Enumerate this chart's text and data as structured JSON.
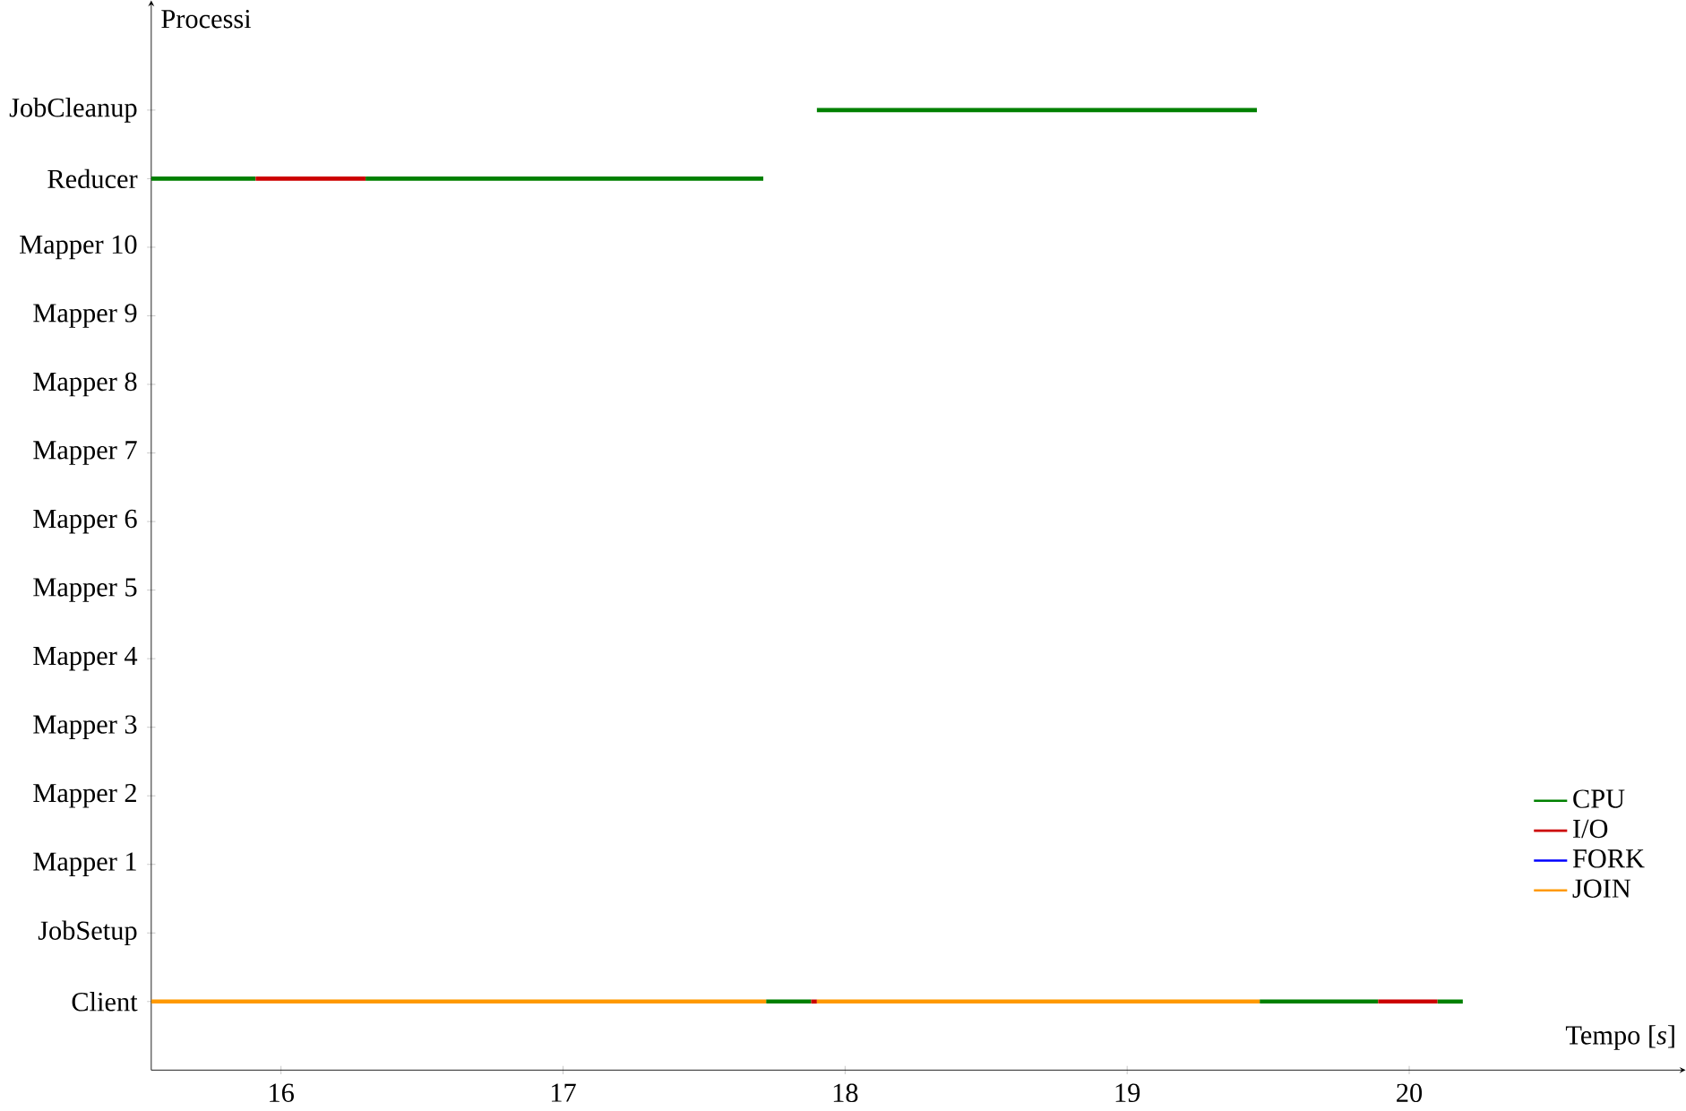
{
  "chart_data": {
    "type": "bar",
    "orientation": "horizontal",
    "xlabel": "Tempo [*s*]",
    "ylabel": "Processi",
    "xlim": [
      15.54,
      20.98
    ],
    "xticks": [
      16,
      17,
      18,
      19,
      20
    ],
    "categories": [
      "JobCleanup",
      "Reducer",
      "Mapper 10",
      "Mapper 9",
      "Mapper 8",
      "Mapper 7",
      "Mapper 6",
      "Mapper 5",
      "Mapper 4",
      "Mapper 3",
      "Mapper 2",
      "Mapper 1",
      "JobSetup",
      "Client"
    ],
    "legend": "bottom right",
    "series": [
      {
        "name": "CPU",
        "color": "#008000",
        "base": [
          17.9,
          15.54,
          null,
          null,
          null,
          null,
          null,
          null,
          null,
          null,
          null,
          null,
          null,
          17.72
        ],
        "values": [
          1.56,
          0.37,
          null,
          null,
          null,
          null,
          null,
          null,
          null,
          null,
          null,
          null,
          null,
          0.16
        ]
      },
      {
        "name": "I/O",
        "color": "#cc0000",
        "base": [
          null,
          15.91,
          null,
          null,
          null,
          null,
          null,
          null,
          null,
          null,
          null,
          null,
          null,
          17.88
        ],
        "values": [
          null,
          0.39,
          null,
          null,
          null,
          null,
          null,
          null,
          null,
          null,
          null,
          null,
          null,
          0.02
        ]
      },
      {
        "name": "FORK",
        "color": "#0000ff",
        "values": [
          null,
          null,
          null,
          null,
          null,
          null,
          null,
          null,
          null,
          null,
          null,
          null,
          null,
          null
        ]
      },
      {
        "name": "JOIN",
        "color": "#ff9900",
        "base": [
          null,
          null,
          null,
          null,
          null,
          null,
          null,
          null,
          null,
          null,
          null,
          null,
          null,
          15.54
        ],
        "values": [
          null,
          null,
          null,
          null,
          null,
          null,
          null,
          null,
          null,
          null,
          null,
          null,
          null,
          2.18
        ]
      },
      {
        "color": "#008000",
        "base": [
          null,
          16.3,
          null,
          null,
          null,
          null,
          null,
          null,
          null,
          null,
          null,
          null,
          null,
          19.47
        ],
        "values": [
          null,
          1.41,
          null,
          null,
          null,
          null,
          null,
          null,
          null,
          null,
          null,
          null,
          null,
          0.42
        ]
      },
      {
        "color": "#008000",
        "base": [
          null,
          null,
          null,
          null,
          null,
          null,
          null,
          null,
          null,
          null,
          null,
          null,
          null,
          20.1
        ],
        "values": [
          null,
          null,
          null,
          null,
          null,
          null,
          null,
          null,
          null,
          null,
          null,
          null,
          null,
          0.09
        ]
      },
      {
        "color": "#cc0000",
        "base": [
          null,
          null,
          null,
          null,
          null,
          null,
          null,
          null,
          null,
          null,
          null,
          null,
          null,
          19.89
        ],
        "values": [
          null,
          null,
          null,
          null,
          null,
          null,
          null,
          null,
          null,
          null,
          null,
          null,
          null,
          0.21
        ]
      },
      {
        "color": "#ff9900",
        "base": [
          null,
          null,
          null,
          null,
          null,
          null,
          null,
          null,
          null,
          null,
          null,
          null,
          null,
          17.9
        ],
        "values": [
          null,
          null,
          null,
          null,
          null,
          null,
          null,
          null,
          null,
          null,
          null,
          null,
          null,
          1.57
        ]
      }
    ]
  }
}
